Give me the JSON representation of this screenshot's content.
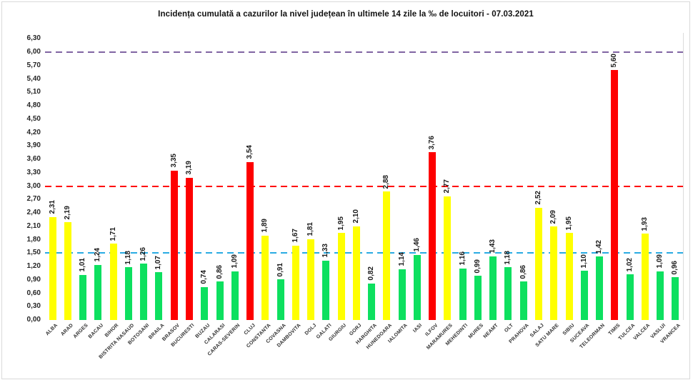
{
  "page": {
    "background": "#ffffff",
    "card_border": "#d9d9d9"
  },
  "chart_data": {
    "type": "bar",
    "title": "Incidența cumulată a cazurilor la nivel județean în ultimele 14 zile la ‰ de locuitori - 07.03.2021",
    "categories": [
      "ALBA",
      "ARAD",
      "ARGES",
      "BACAU",
      "BIHOR",
      "BISTRITA NASAUD",
      "BOTOSANI",
      "BRAILA",
      "BRASOV",
      "BUCURESTI",
      "BUZAU",
      "CALARASI",
      "CARAS-SEVERIN",
      "CLUJ",
      "CONSTANTA",
      "COVASNA",
      "DAMBOVITA",
      "DOLJ",
      "GALATI",
      "GIURGIU",
      "GORJ",
      "HARGHITA",
      "HUNEDOARA",
      "IALOMITA",
      "IASI",
      "ILFOV",
      "MARAMURES",
      "MEHEDINTI",
      "MURES",
      "NEAMT",
      "OLT",
      "PRAHOVA",
      "SALAJ",
      "SATU MARE",
      "SIBIU",
      "SUCEAVA",
      "TELEORMAN",
      "TIMIS",
      "TULCEA",
      "VALCEA",
      "VASLUI",
      "VRANCEA"
    ],
    "values": [
      2.31,
      2.19,
      1.01,
      1.24,
      1.71,
      1.18,
      1.26,
      1.07,
      3.35,
      3.19,
      0.74,
      0.86,
      1.09,
      3.54,
      1.89,
      0.91,
      1.67,
      1.81,
      1.33,
      1.95,
      2.1,
      0.82,
      2.88,
      1.14,
      1.46,
      3.76,
      2.77,
      1.16,
      0.99,
      1.43,
      1.18,
      0.86,
      2.52,
      2.09,
      1.95,
      1.1,
      1.42,
      5.6,
      1.02,
      1.93,
      1.09,
      0.96
    ],
    "value_labels": [
      "2,31",
      "2,19",
      "1,01",
      "1,24",
      "1,71",
      "1,18",
      "1,26",
      "1,07",
      "3,35",
      "3,19",
      "0,74",
      "0,86",
      "1,09",
      "3,54",
      "1,89",
      "0,91",
      "1,67",
      "1,81",
      "1,33",
      "1,95",
      "2,10",
      "0,82",
      "2,88",
      "1,14",
      "1,46",
      "3,76",
      "2,77",
      "1,16",
      "0,99",
      "1,43",
      "1,18",
      "0,86",
      "2,52",
      "2,09",
      "1,95",
      "1,10",
      "1,42",
      "5,60",
      "1,02",
      "1,93",
      "1,09",
      "0,96"
    ],
    "bar_colors": [
      "yellow",
      "yellow",
      "green",
      "green",
      "yellow",
      "green",
      "green",
      "green",
      "red",
      "red",
      "green",
      "green",
      "green",
      "red",
      "yellow",
      "green",
      "yellow",
      "yellow",
      "green",
      "yellow",
      "yellow",
      "green",
      "yellow",
      "green",
      "green",
      "red",
      "yellow",
      "green",
      "green",
      "green",
      "green",
      "green",
      "yellow",
      "yellow",
      "yellow",
      "green",
      "green",
      "red",
      "green",
      "yellow",
      "green",
      "green"
    ],
    "palette": {
      "green": "#0de05f",
      "yellow": "#ffff00",
      "red": "#fe0000"
    },
    "bar_color_rule": "green < 1,50 ; yellow 1,50-3,00 ; red > 3,00",
    "ylim": [
      0,
      6.3
    ],
    "yticks": [
      "0,00",
      "0,30",
      "0,60",
      "0,90",
      "1,20",
      "1,50",
      "1,80",
      "2,10",
      "2,40",
      "2,70",
      "3,00",
      "3,30",
      "3,60",
      "3,90",
      "4,20",
      "4,50",
      "4,80",
      "5,10",
      "5,40",
      "5,70",
      "6,00",
      "6,30"
    ],
    "grid": false,
    "legend": false,
    "thresholds": [
      {
        "value": 1.5,
        "label": "1,50",
        "color": "#29abe2"
      },
      {
        "value": 3.0,
        "label": "3,00",
        "color": "#ff0000"
      },
      {
        "value": 6.0,
        "label": "6,00",
        "color": "#8064a2"
      }
    ]
  }
}
